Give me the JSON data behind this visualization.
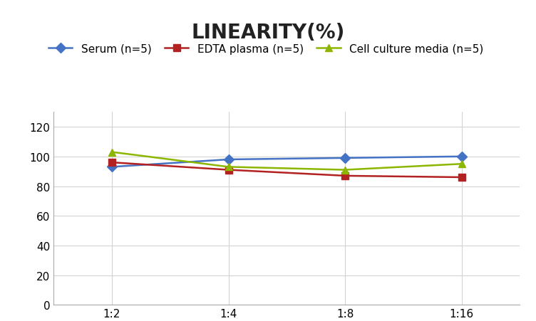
{
  "title": "LINEARITY(%)",
  "x_labels": [
    "1:2",
    "1:4",
    "1:8",
    "1:16"
  ],
  "series": [
    {
      "name": "Serum (n=5)",
      "values": [
        93,
        98,
        99,
        100
      ],
      "color": "#4472C4",
      "marker": "D",
      "linewidth": 1.8
    },
    {
      "name": "EDTA plasma (n=5)",
      "values": [
        96,
        91,
        87,
        86
      ],
      "color": "#B22222",
      "marker": "s",
      "linewidth": 1.8
    },
    {
      "name": "Cell culture media (n=5)",
      "values": [
        103,
        93,
        91,
        95
      ],
      "color": "#8DB600",
      "marker": "^",
      "linewidth": 1.8
    }
  ],
  "ylim": [
    0,
    130
  ],
  "yticks": [
    0,
    20,
    40,
    60,
    80,
    100,
    120
  ],
  "background_color": "#ffffff",
  "grid_color": "#d3d3d3",
  "title_fontsize": 20,
  "legend_fontsize": 11,
  "tick_fontsize": 11
}
